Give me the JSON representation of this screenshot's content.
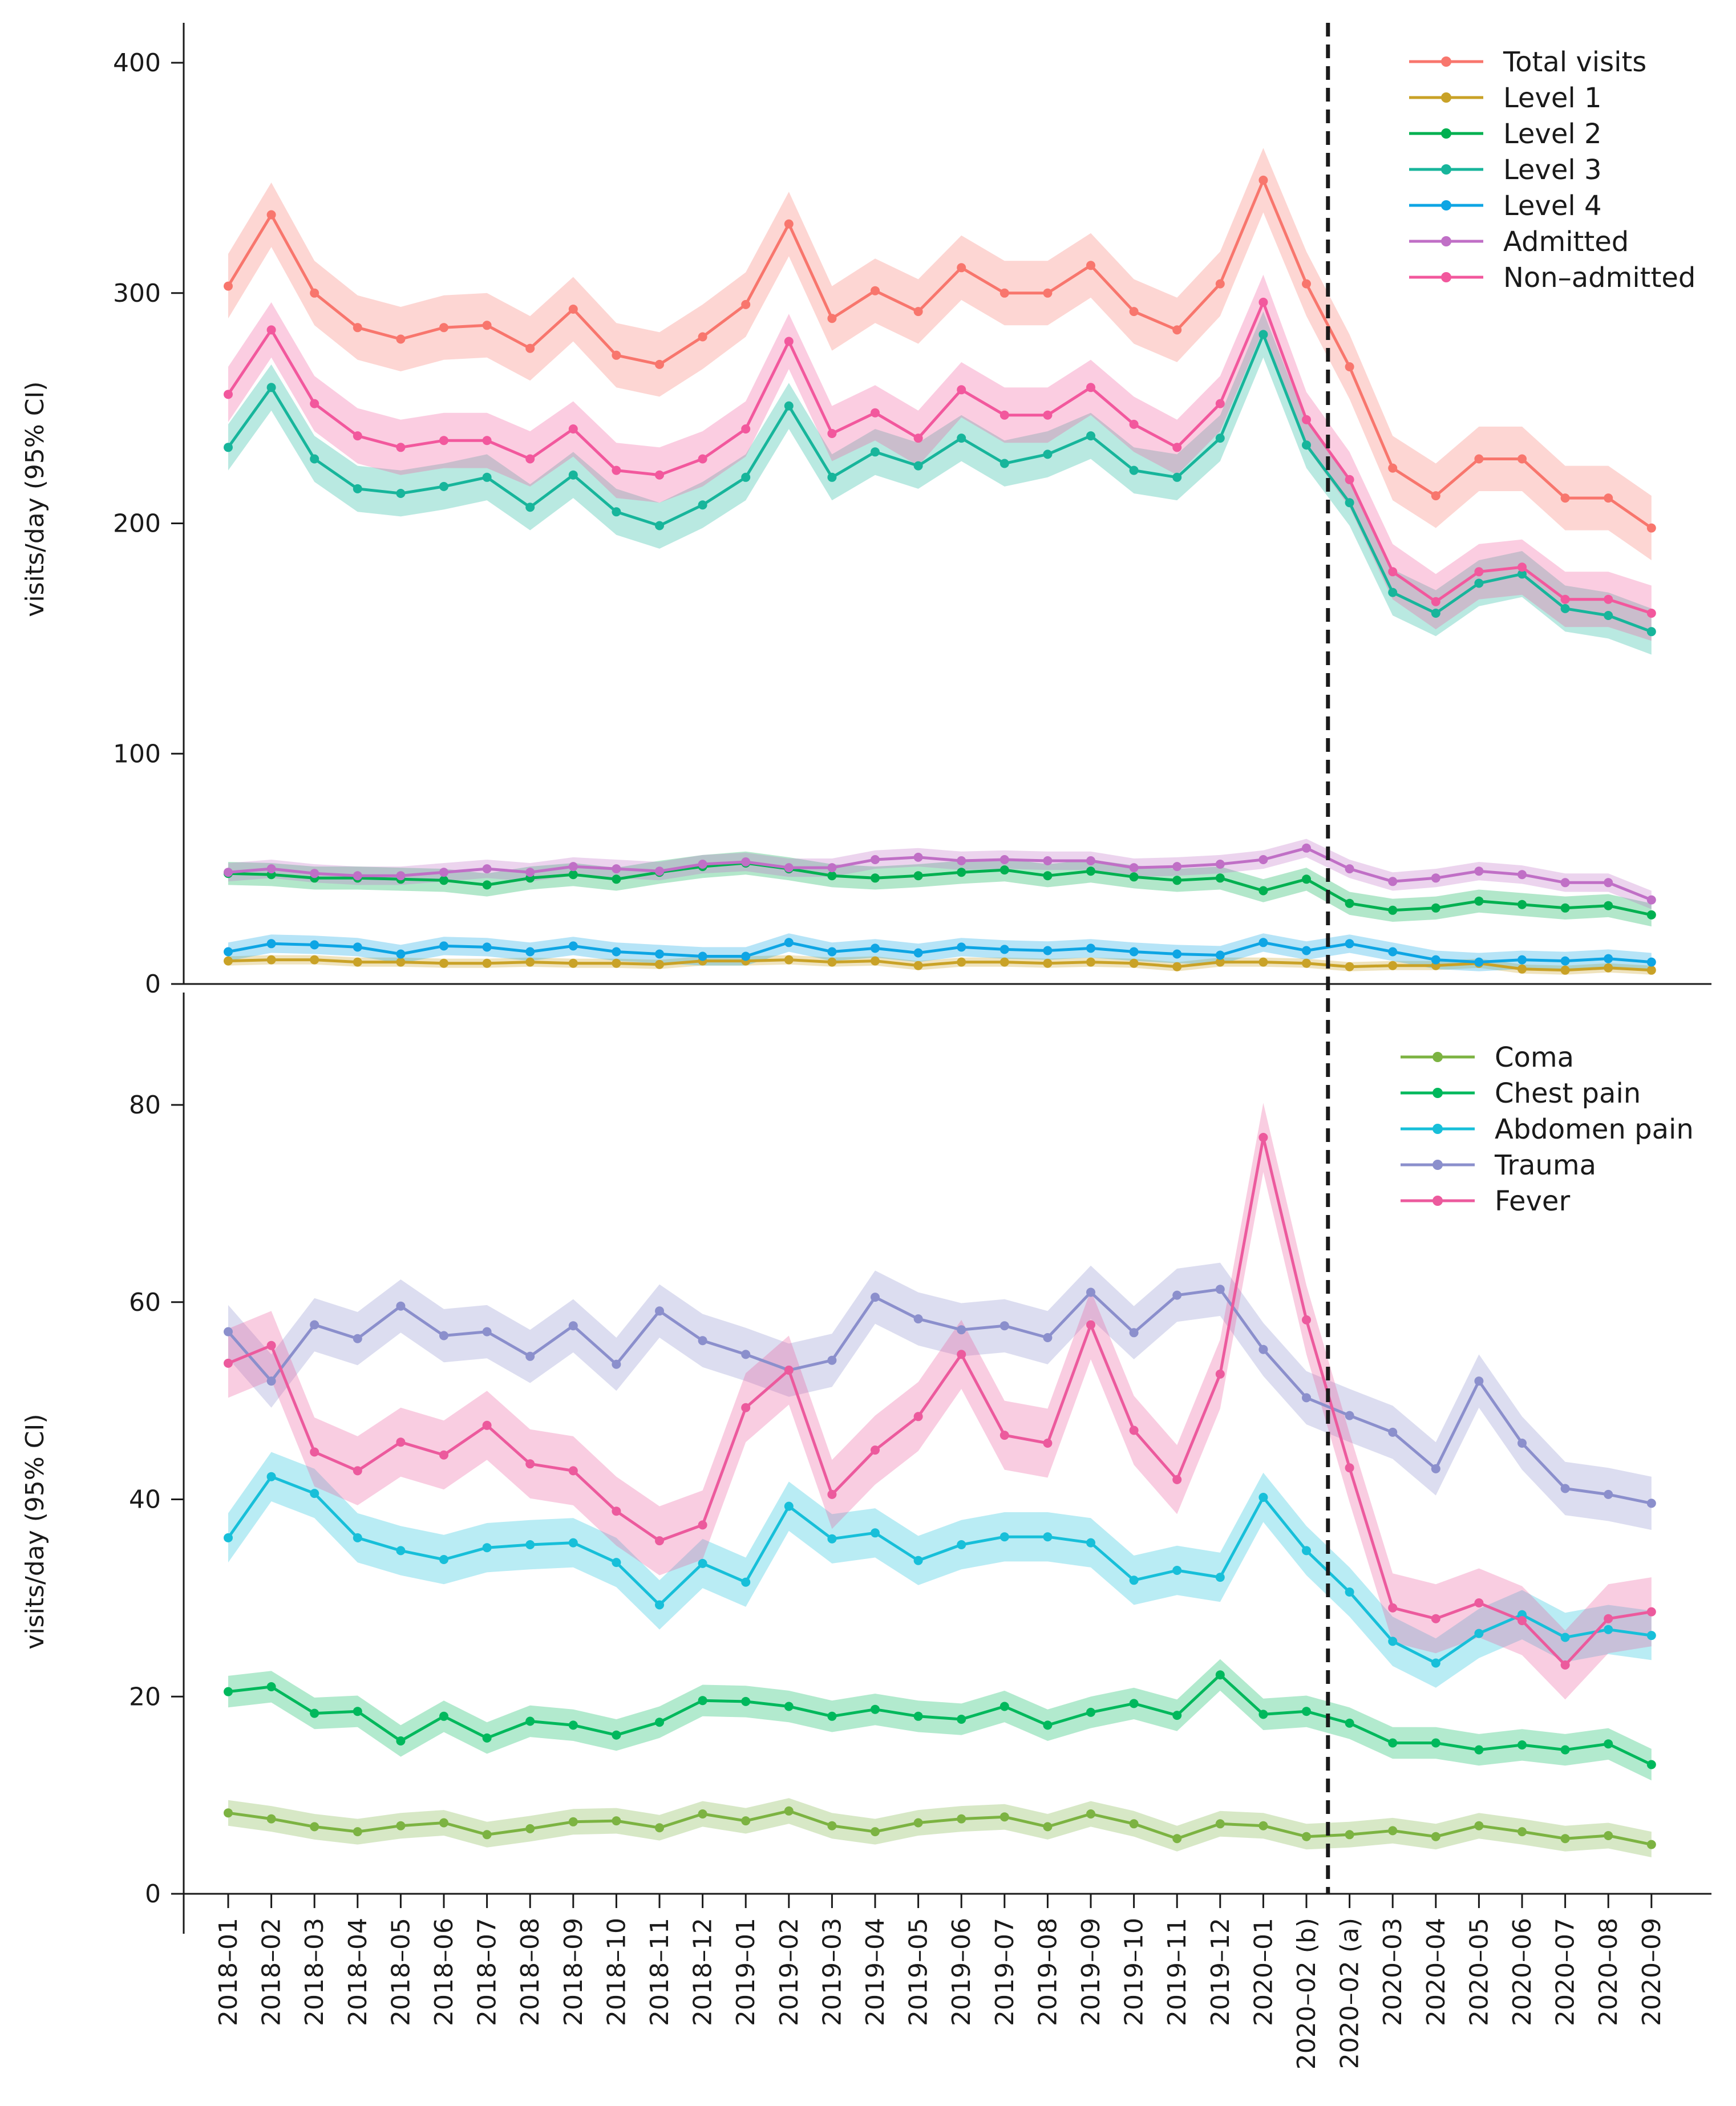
{
  "chart_data": [
    {
      "type": "line",
      "panel": "top",
      "title": "",
      "xlabel": "",
      "ylabel": "visits/day (95% CI)",
      "ylim": [
        0,
        410
      ],
      "yticks": [
        0,
        100,
        200,
        300,
        400
      ],
      "legend_position": "top-right",
      "categories": [
        "2018–01",
        "2018–02",
        "2018–03",
        "2018–04",
        "2018–05",
        "2018–06",
        "2018–07",
        "2018–08",
        "2018–09",
        "2018–10",
        "2018–11",
        "2018–12",
        "2019–01",
        "2019–02",
        "2019–03",
        "2019–04",
        "2019–05",
        "2019–06",
        "2019–07",
        "2019–08",
        "2019–09",
        "2019–10",
        "2019–11",
        "2019–12",
        "2020–01",
        "2020–02 (b)",
        "2020–02 (a)",
        "2020–03",
        "2020–04",
        "2020–05",
        "2020–06",
        "2020–07",
        "2020–08",
        "2020–09"
      ],
      "series": [
        {
          "name": "Total visits",
          "color": "#f8766d",
          "values": [
            303,
            334,
            300,
            285,
            280,
            285,
            286,
            276,
            293,
            273,
            269,
            281,
            295,
            330,
            289,
            301,
            292,
            311,
            300,
            300,
            312,
            292,
            284,
            304,
            349,
            304,
            268,
            224,
            212,
            228,
            228,
            211,
            211,
            198
          ],
          "ci": 14
        },
        {
          "name": "Level 1",
          "color": "#c9a227",
          "values": [
            10,
            10.5,
            10.5,
            9.5,
            9.5,
            9,
            9,
            9.5,
            9,
            9,
            8.5,
            10,
            10,
            10.5,
            9.5,
            10,
            8,
            9.5,
            9.5,
            9,
            9.5,
            9,
            7.5,
            9.5,
            9.5,
            9,
            7.5,
            8,
            8,
            9,
            6.5,
            6,
            7,
            6
          ],
          "ci": 2
        },
        {
          "name": "Level 2",
          "color": "#00b050",
          "values": [
            48,
            47.5,
            46,
            46,
            45.5,
            45,
            43,
            46,
            47.5,
            45.5,
            48.5,
            51,
            52.5,
            50,
            47,
            46,
            47,
            48.5,
            49.5,
            47,
            49,
            46.5,
            45,
            46,
            40.5,
            45.5,
            35,
            32,
            33,
            36,
            34.5,
            33,
            34,
            30
          ],
          "ci": 5
        },
        {
          "name": "Level 3",
          "color": "#17b59b",
          "values": [
            233,
            259,
            228,
            215,
            213,
            216,
            220,
            207,
            221,
            205,
            199,
            208,
            220,
            251,
            220,
            231,
            225,
            237,
            226,
            230,
            238,
            223,
            220,
            237,
            282,
            234,
            209,
            170,
            161,
            174,
            178,
            163,
            160,
            153
          ],
          "ci": 10
        },
        {
          "name": "Level 4",
          "color": "#0ea5e4",
          "values": [
            14,
            17.5,
            17,
            16,
            13,
            16.5,
            16,
            14,
            16.5,
            14,
            13,
            12,
            12,
            18,
            14,
            15.5,
            13.5,
            16,
            15,
            14.5,
            15.5,
            14,
            13,
            12.5,
            18,
            14.5,
            17.5,
            14,
            10.5,
            9.5,
            10.5,
            10,
            11,
            9.5
          ],
          "ci": 4
        },
        {
          "name": "Admitted",
          "color": "#c06fc6",
          "values": [
            48.5,
            50,
            48,
            47,
            47,
            48.5,
            50,
            48.5,
            51,
            50,
            49,
            52,
            53,
            50.5,
            50.5,
            54,
            55,
            53.5,
            54,
            53.5,
            53.5,
            50.5,
            51,
            52,
            54,
            59,
            50,
            44.5,
            46,
            49,
            47.5,
            44,
            44,
            36.5
          ],
          "ci": 4
        },
        {
          "name": "Non–admitted",
          "color": "#f2589d",
          "values": [
            256,
            284,
            252,
            238,
            233,
            236,
            236,
            228,
            241,
            223,
            221,
            228,
            241,
            279,
            239,
            248,
            237,
            258,
            247,
            247,
            259,
            243,
            233,
            252,
            296,
            245,
            219,
            179,
            166,
            179,
            181,
            167,
            167,
            161
          ],
          "ci": 12
        }
      ]
    },
    {
      "type": "line",
      "panel": "bottom",
      "title": "",
      "xlabel": "",
      "ylabel": "visits/day (95% CI)",
      "ylim": [
        0,
        90
      ],
      "yticks": [
        0,
        20,
        40,
        60,
        80
      ],
      "legend_position": "top-right",
      "categories": [
        "2018–01",
        "2018–02",
        "2018–03",
        "2018–04",
        "2018–05",
        "2018–06",
        "2018–07",
        "2018–08",
        "2018–09",
        "2018–10",
        "2018–11",
        "2018–12",
        "2019–01",
        "2019–02",
        "2019–03",
        "2019–04",
        "2019–05",
        "2019–06",
        "2019–07",
        "2019–08",
        "2019–09",
        "2019–10",
        "2019–11",
        "2019–12",
        "2020–01",
        "2020–02 (b)",
        "2020–02 (a)",
        "2020–03",
        "2020–04",
        "2020–05",
        "2020–06",
        "2020–07",
        "2020–08",
        "2020–09"
      ],
      "series": [
        {
          "name": "Coma",
          "color": "#7cb342",
          "values": [
            8.2,
            7.6,
            6.8,
            6.3,
            6.9,
            7.2,
            6,
            6.6,
            7.3,
            7.4,
            6.7,
            8.1,
            7.4,
            8.4,
            6.9,
            6.3,
            7.2,
            7.6,
            7.8,
            6.8,
            8.1,
            7.1,
            5.6,
            7.1,
            6.9,
            5.8,
            6,
            6.4,
            5.8,
            6.9,
            6.3,
            5.6,
            5.9,
            5
          ],
          "ci": 1.3
        },
        {
          "name": "Chest pain",
          "color": "#00b85c",
          "values": [
            20.5,
            21,
            18.3,
            18.5,
            15.5,
            18,
            15.8,
            17.5,
            17.1,
            16.1,
            17.4,
            19.6,
            19.5,
            19,
            18,
            18.7,
            18,
            17.7,
            19,
            17.1,
            18.4,
            19.3,
            18.1,
            22.2,
            18.2,
            18.5,
            17.3,
            15.3,
            15.3,
            14.6,
            15.1,
            14.6,
            15.2,
            13.1
          ],
          "ci": 1.6
        },
        {
          "name": "Abdomen pain",
          "color": "#17bfd9",
          "values": [
            36.1,
            42.3,
            40.6,
            36.1,
            34.8,
            33.9,
            35.1,
            35.4,
            35.6,
            33.6,
            29.3,
            33.5,
            31.6,
            39.3,
            36,
            36.6,
            33.8,
            35.4,
            36.2,
            36.2,
            35.6,
            31.8,
            32.8,
            32.1,
            40.2,
            34.8,
            30.6,
            25.6,
            23.4,
            26.4,
            28.3,
            26,
            26.8,
            26.2
          ],
          "ci": 2.5
        },
        {
          "name": "Trauma",
          "color": "#8b8fcc",
          "values": [
            57,
            52,
            57.7,
            56.3,
            59.6,
            56.6,
            57,
            54.5,
            57.6,
            53.7,
            59.1,
            56.1,
            54.7,
            53.1,
            54.1,
            60.5,
            58.3,
            57.2,
            57.6,
            56.4,
            61,
            56.9,
            60.7,
            61.3,
            55.2,
            50.3,
            48.5,
            46.8,
            43.1,
            52,
            45.7,
            41.1,
            40.5,
            39.6
          ],
          "ci": 2.7
        },
        {
          "name": "Fever",
          "color": "#ec5a9d",
          "values": [
            53.8,
            55.6,
            44.8,
            42.9,
            45.8,
            44.5,
            47.5,
            43.6,
            42.9,
            38.8,
            35.8,
            37.4,
            49.3,
            53.1,
            40.5,
            45,
            48.4,
            54.7,
            46.5,
            45.7,
            57.7,
            47,
            42,
            52.7,
            76.7,
            58.2,
            43.2,
            29,
            27.9,
            29.5,
            27.7,
            23.2,
            27.9,
            28.6
          ],
          "ci": 3.5
        }
      ]
    }
  ],
  "x_tick_labels": [
    "2018–01",
    "2018–02",
    "2018–03",
    "2018–04",
    "2018–05",
    "2018–06",
    "2018–07",
    "2018–08",
    "2018–09",
    "2018–10",
    "2018–11",
    "2018–12",
    "2019–01",
    "2019–02",
    "2019–03",
    "2019–04",
    "2019–05",
    "2019–06",
    "2019–07",
    "2019–08",
    "2019–09",
    "2019–10",
    "2019–11",
    "2019–12",
    "2020–01",
    "2020–02 (b)",
    "2020–02 (a)",
    "2020–03",
    "2020–04",
    "2020–05",
    "2020–06",
    "2020–07",
    "2020–08",
    "2020–09"
  ],
  "divider": {
    "between": [
      "2020–02 (b)",
      "2020–02 (a)"
    ],
    "style": "dashed"
  }
}
